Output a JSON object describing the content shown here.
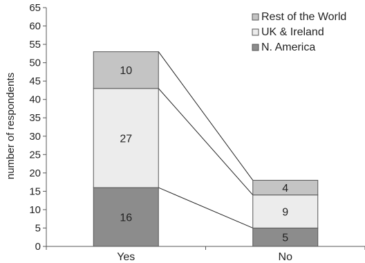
{
  "chart_data": {
    "type": "bar",
    "stacked": true,
    "categories": [
      "Yes",
      "No"
    ],
    "series": [
      {
        "name": "N. America",
        "values": [
          16,
          5
        ],
        "color": "#8c8c8c"
      },
      {
        "name": "UK & Ireland",
        "values": [
          27,
          9
        ],
        "color": "#ececec"
      },
      {
        "name": "Rest of the World",
        "values": [
          10,
          4
        ],
        "color": "#c4c4c4"
      }
    ],
    "ylabel": "number of respondents",
    "ylim": [
      0,
      65
    ],
    "yticks": [
      0,
      5,
      10,
      15,
      20,
      25,
      30,
      35,
      40,
      45,
      50,
      55,
      60,
      65
    ],
    "legend_order": [
      "Rest of the World",
      "UK & Ireland",
      "N. America"
    ],
    "legend_position": "top-right",
    "connector_lines": true,
    "grid": false
  }
}
